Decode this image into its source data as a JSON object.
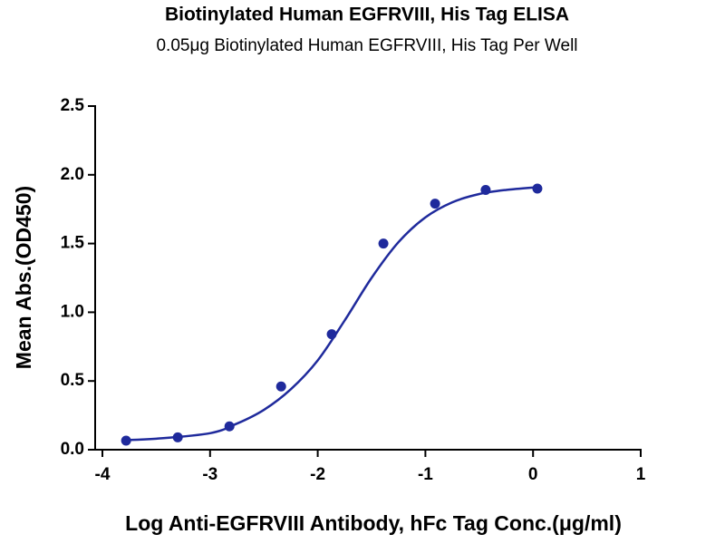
{
  "chart_data": {
    "type": "scatter",
    "title": "Biotinylated Human EGFRVIII, His Tag ELISA",
    "subtitle": "0.05μg Biotinylated Human EGFRVIII, His Tag Per Well",
    "x_label": "Log Anti-EGFRVIII Antibody, hFc Tag Conc.(μg/ml)",
    "y_label": "Mean Abs.(OD450)",
    "color": "#1f2a9c",
    "x": [
      -3.78,
      -3.3,
      -2.82,
      -2.34,
      -1.87,
      -1.39,
      -0.91,
      -0.44,
      0.04
    ],
    "values": [
      0.066,
      0.09,
      0.17,
      0.46,
      0.84,
      1.5,
      1.79,
      1.89,
      1.9
    ],
    "curve": {
      "x": [
        -3.8,
        -3.5,
        -3.0,
        -2.75,
        -2.5,
        -2.25,
        -2.0,
        -1.75,
        -1.5,
        -1.25,
        -1.0,
        -0.75,
        -0.5,
        -0.25,
        0.04
      ],
      "values": [
        0.07,
        0.08,
        0.12,
        0.19,
        0.29,
        0.44,
        0.65,
        0.94,
        1.25,
        1.51,
        1.69,
        1.8,
        1.86,
        1.89,
        1.91
      ]
    },
    "xlim": [
      -4,
      1
    ],
    "xticks": [
      -4,
      -3,
      -2,
      -1,
      0,
      1
    ],
    "ylim": [
      0,
      2.5
    ],
    "yticks": [
      {
        "value": 0,
        "label": "0.0"
      },
      0.5,
      {
        "value": 1,
        "label": "1.0"
      },
      1.5,
      {
        "value": 2,
        "label": "2.0"
      },
      2.5
    ]
  }
}
